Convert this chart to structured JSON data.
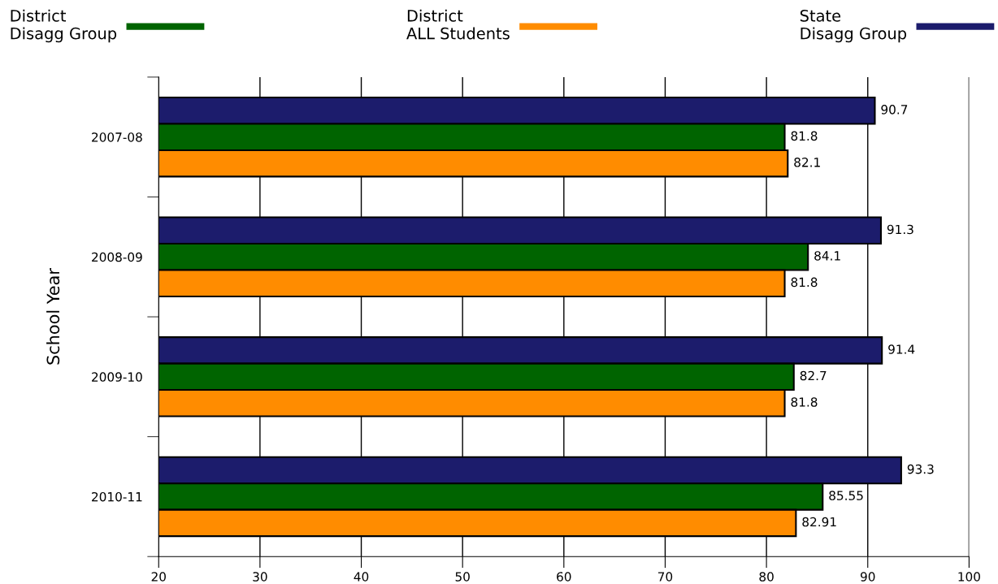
{
  "chart_data": {
    "type": "bar",
    "orientation": "horizontal",
    "ylabel": "School Year",
    "categories": [
      "2007-08",
      "2008-09",
      "2009-10",
      "2010-11"
    ],
    "series": [
      {
        "name": "State\nDisagg Group",
        "color": "#1c1c6c",
        "values": [
          90.7,
          91.3,
          91.4,
          93.3
        ]
      },
      {
        "name": "District\nDisagg Group",
        "color": "#006400",
        "values": [
          81.8,
          84.1,
          82.7,
          85.55
        ]
      },
      {
        "name": "District\nALL Students",
        "color": "#ff8c00",
        "values": [
          82.1,
          81.8,
          81.8,
          82.91
        ]
      }
    ],
    "xlim": [
      20,
      100
    ],
    "xticks": [
      20,
      30,
      40,
      50,
      60,
      70,
      80,
      90,
      100
    ],
    "grid": "x",
    "legend": "top",
    "data_labels": true
  }
}
